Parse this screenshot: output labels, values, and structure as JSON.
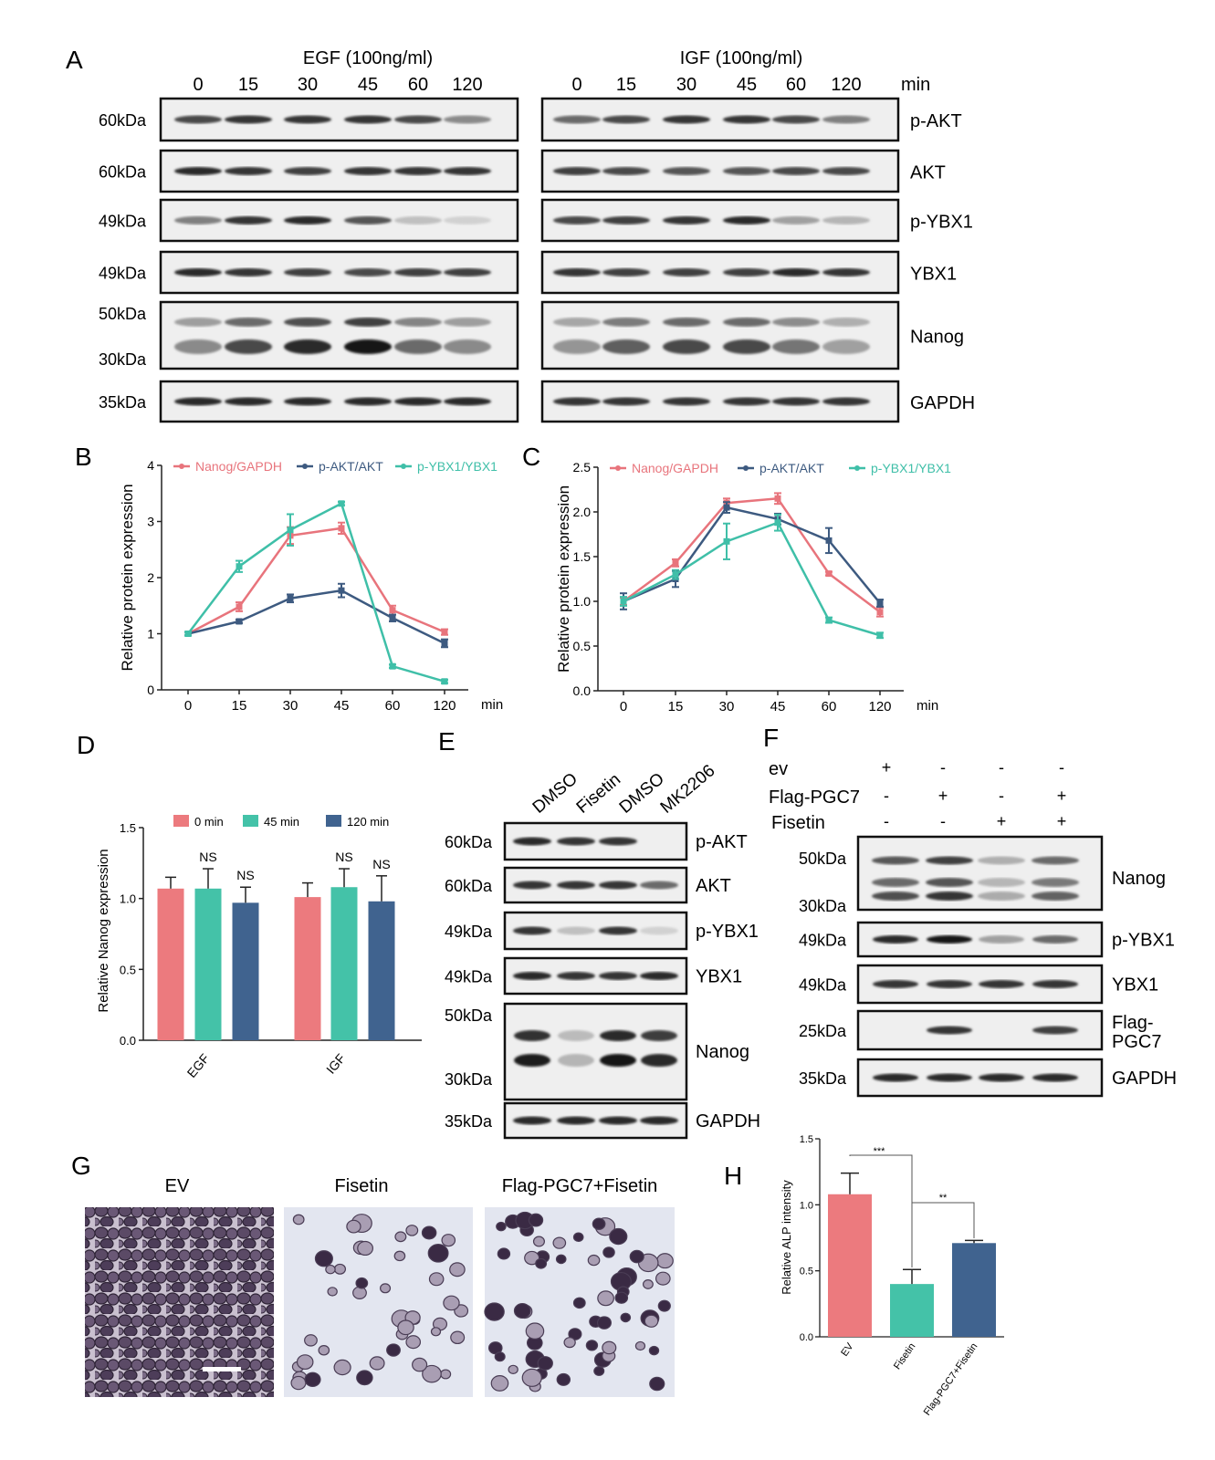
{
  "panel_letters": [
    "A",
    "B",
    "C",
    "D",
    "E",
    "F",
    "G",
    "H"
  ],
  "panelA": {
    "egf_title": "EGF (100ng/ml)",
    "igf_title": "IGF (100ng/ml)",
    "times": [
      "0",
      "15",
      "30",
      "45",
      "60",
      "120"
    ],
    "unit": "min",
    "rows": [
      {
        "label": "p-AKT",
        "kda": [
          "60"
        ],
        "egf": [
          0.75,
          0.85,
          0.85,
          0.85,
          0.75,
          0.45
        ],
        "igf": [
          0.6,
          0.75,
          0.85,
          0.85,
          0.75,
          0.5
        ]
      },
      {
        "label": "AKT",
        "kda": [
          "60"
        ],
        "egf": [
          0.9,
          0.85,
          0.8,
          0.85,
          0.85,
          0.85
        ],
        "igf": [
          0.8,
          0.75,
          0.7,
          0.7,
          0.75,
          0.75
        ]
      },
      {
        "label": "p-YBX1",
        "kda": [
          "49"
        ],
        "egf": [
          0.5,
          0.85,
          0.9,
          0.7,
          0.2,
          0.12
        ],
        "igf": [
          0.75,
          0.8,
          0.85,
          0.9,
          0.35,
          0.25
        ]
      },
      {
        "label": "YBX1",
        "kda": [
          "49"
        ],
        "egf": [
          0.9,
          0.85,
          0.8,
          0.75,
          0.8,
          0.8
        ],
        "igf": [
          0.85,
          0.8,
          0.8,
          0.8,
          0.9,
          0.85
        ]
      },
      {
        "label": "Nanog",
        "kda": [
          "50",
          "30"
        ],
        "egf": [
          0.45,
          0.75,
          0.9,
          1.0,
          0.6,
          0.45
        ],
        "igf": [
          0.4,
          0.65,
          0.75,
          0.75,
          0.55,
          0.35
        ]
      },
      {
        "label": "GAPDH",
        "kda": [
          "35"
        ],
        "egf": [
          0.9,
          0.9,
          0.9,
          0.9,
          0.9,
          0.9
        ],
        "igf": [
          0.85,
          0.85,
          0.85,
          0.85,
          0.85,
          0.85
        ]
      }
    ]
  },
  "kda_unit": "kDa",
  "chart_data": [
    {
      "panel": "B",
      "type": "line",
      "x": [
        "0",
        "15",
        "30",
        "45",
        "60",
        "120"
      ],
      "xunit": "min",
      "ylabel": "Relative protein expression",
      "ylim": [
        0,
        4
      ],
      "yticks": [
        "0",
        "1",
        "2",
        "3",
        "4"
      ],
      "series": [
        {
          "name": "Nanog/GAPDH",
          "color": "#e8747c",
          "values": [
            1.0,
            1.48,
            2.75,
            2.88,
            1.42,
            1.03
          ],
          "err": [
            0.03,
            0.08,
            0.15,
            0.1,
            0.08,
            0.05
          ]
        },
        {
          "name": "p-AKT/AKT",
          "color": "#3d5a80",
          "values": [
            1.0,
            1.22,
            1.63,
            1.77,
            1.28,
            0.83
          ],
          "err": [
            0.03,
            0.03,
            0.07,
            0.12,
            0.06,
            0.07
          ]
        },
        {
          "name": "p-YBX1/YBX1",
          "color": "#3fbfa8",
          "values": [
            1.0,
            2.2,
            2.85,
            3.32,
            0.42,
            0.15
          ],
          "err": [
            0.03,
            0.1,
            0.28,
            0.03,
            0.03,
            0.03
          ]
        }
      ]
    },
    {
      "panel": "C",
      "type": "line",
      "x": [
        "0",
        "15",
        "30",
        "45",
        "60",
        "120"
      ],
      "xunit": "min",
      "ylabel": "Relative protein expression",
      "ylim": [
        0,
        2.5
      ],
      "yticks": [
        "0.0",
        "0.5",
        "1.0",
        "1.5",
        "2.0",
        "2.5"
      ],
      "series": [
        {
          "name": "Nanog/GAPDH",
          "color": "#e8747c",
          "values": [
            1.0,
            1.43,
            2.1,
            2.15,
            1.31,
            0.88
          ],
          "err": [
            0.04,
            0.04,
            0.05,
            0.06,
            0.02,
            0.05
          ]
        },
        {
          "name": "p-AKT/AKT",
          "color": "#3d5a80",
          "values": [
            1.0,
            1.25,
            2.05,
            1.92,
            1.68,
            0.98
          ],
          "err": [
            0.09,
            0.09,
            0.06,
            0.06,
            0.14,
            0.04
          ]
        },
        {
          "name": "p-YBX1/YBX1",
          "color": "#3fbfa8",
          "values": [
            1.0,
            1.3,
            1.67,
            1.88,
            0.79,
            0.62
          ],
          "err": [
            0.05,
            0.05,
            0.2,
            0.09,
            0.03,
            0.03
          ]
        }
      ]
    },
    {
      "panel": "D",
      "type": "bar",
      "categories": [
        "EGF",
        "IGF"
      ],
      "ylabel": "Relative Nanog expression",
      "ylim": [
        0,
        1.5
      ],
      "yticks": [
        "0.0",
        "0.5",
        "1.0",
        "1.5"
      ],
      "series": [
        {
          "name": "0 min",
          "color": "#ec7a7e",
          "values": [
            1.07,
            1.01
          ],
          "err": [
            0.08,
            0.1
          ],
          "sig": [
            "",
            ""
          ]
        },
        {
          "name": "45 min",
          "color": "#44c2a8",
          "values": [
            1.07,
            1.08
          ],
          "err": [
            0.14,
            0.13
          ],
          "sig": [
            "NS",
            "NS"
          ]
        },
        {
          "name": "120 min",
          "color": "#40638f",
          "values": [
            0.97,
            0.98
          ],
          "err": [
            0.11,
            0.18
          ],
          "sig": [
            "NS",
            "NS"
          ]
        }
      ]
    },
    {
      "panel": "H",
      "type": "bar",
      "categories": [
        "EV",
        "Fisetin",
        "Flag-PGC7+Fisetin"
      ],
      "colors": [
        "#ec7a7e",
        "#44c2a8",
        "#40638f"
      ],
      "ylabel": "Relative  ALP  intensity",
      "ylim": [
        0,
        1.5
      ],
      "yticks": [
        "0.0",
        "0.5",
        "1.0",
        "1.5"
      ],
      "values": [
        1.08,
        0.4,
        0.71
      ],
      "err": [
        0.16,
        0.11,
        0.02
      ],
      "comparisons": [
        {
          "label": "***",
          "from": 0,
          "to": 1
        },
        {
          "label": "**",
          "from": 1,
          "to": 2
        }
      ]
    }
  ],
  "panelE": {
    "lanes": [
      "DMSO",
      "Fisetin",
      "DMSO",
      "MK2206"
    ],
    "rows": [
      {
        "label": "p-AKT",
        "kda": [
          "60"
        ],
        "bands": [
          0.9,
          0.85,
          0.85,
          0.0
        ]
      },
      {
        "label": "AKT",
        "kda": [
          "60"
        ],
        "bands": [
          0.85,
          0.85,
          0.85,
          0.6
        ]
      },
      {
        "label": "p-YBX1",
        "kda": [
          "49"
        ],
        "bands": [
          0.85,
          0.2,
          0.85,
          0.12
        ]
      },
      {
        "label": "YBX1",
        "kda": [
          "49"
        ],
        "bands": [
          0.9,
          0.85,
          0.85,
          0.9
        ]
      },
      {
        "label": "Nanog",
        "kda": [
          "50",
          "30"
        ],
        "bands": [
          0.95,
          0.25,
          1.0,
          0.9
        ]
      },
      {
        "label": "GAPDH",
        "kda": [
          "35"
        ],
        "bands": [
          0.9,
          0.9,
          0.9,
          0.9
        ]
      }
    ]
  },
  "panelF": {
    "conditions": [
      {
        "name": "ev",
        "marks": [
          "+",
          "-",
          "-",
          "-"
        ]
      },
      {
        "name": "Flag-PGC7",
        "marks": [
          "-",
          "+",
          "-",
          "+"
        ]
      },
      {
        "name": "Fisetin",
        "marks": [
          "-",
          "-",
          "+",
          "+"
        ]
      }
    ],
    "rows": [
      {
        "label": "Nanog",
        "kda": [
          "50",
          "30"
        ],
        "bands": [
          0.85,
          1.0,
          0.35,
          0.75
        ]
      },
      {
        "label": "p-YBX1",
        "kda": [
          "49"
        ],
        "bands": [
          0.9,
          1.0,
          0.35,
          0.6
        ]
      },
      {
        "label": "YBX1",
        "kda": [
          "49"
        ],
        "bands": [
          0.85,
          0.85,
          0.85,
          0.85
        ]
      },
      {
        "label": "Flag-PGC7",
        "kda": [
          "25"
        ],
        "bands": [
          0.0,
          0.85,
          0.0,
          0.8
        ]
      },
      {
        "label": "GAPDH",
        "kda": [
          "35"
        ],
        "bands": [
          0.9,
          0.9,
          0.9,
          0.9
        ]
      }
    ]
  },
  "panelG": {
    "titles": [
      "EV",
      "Fisetin",
      "Flag-PGC7+Fisetin"
    ]
  }
}
